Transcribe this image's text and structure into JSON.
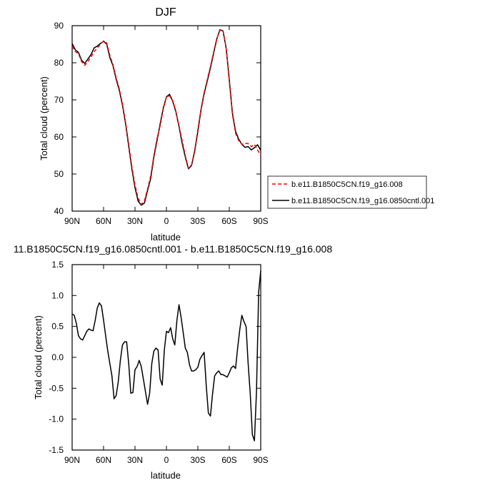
{
  "chart_data": [
    {
      "type": "line",
      "title": "DJF",
      "xlabel": "latitude",
      "ylabel": "Total cloud (percent)",
      "xlim": [
        90,
        -90
      ],
      "ylim": [
        40,
        90
      ],
      "x_ticks": [
        90,
        60,
        30,
        0,
        -30,
        -60,
        -90
      ],
      "x_tick_labels": [
        "90N",
        "60N",
        "30N",
        "0",
        "30S",
        "60S",
        "90S"
      ],
      "y_ticks": [
        40,
        50,
        60,
        70,
        80,
        90
      ],
      "y_tick_labels": [
        "40",
        "50",
        "60",
        "70",
        "80",
        "90"
      ],
      "grid": false,
      "legend_position": "right",
      "series": [
        {
          "name": "b.e11.B1850C5CN.f19_g16.008",
          "color": "#ff0000",
          "dash": "dashed",
          "x": [
            90,
            87,
            84,
            81,
            78,
            75,
            72,
            69,
            66,
            63,
            60,
            57,
            54,
            51,
            48,
            45,
            42,
            39,
            36,
            33,
            30,
            27,
            24,
            21,
            18,
            15,
            12,
            9,
            6,
            3,
            0,
            -3,
            -6,
            -9,
            -12,
            -15,
            -18,
            -21,
            -24,
            -27,
            -30,
            -33,
            -36,
            -39,
            -42,
            -45,
            -48,
            -51,
            -54,
            -57,
            -60,
            -63,
            -66,
            -69,
            -72,
            -75,
            -78,
            -81,
            -84,
            -87,
            -90
          ],
          "y": [
            84.5,
            83.0,
            82.5,
            80.3,
            79.3,
            80.3,
            81.5,
            83.0,
            84.0,
            85.0,
            85.9,
            85.3,
            82.0,
            79.5,
            76.0,
            73.0,
            69.0,
            64.0,
            58.0,
            52.0,
            47.0,
            43.5,
            41.8,
            42.8,
            46.0,
            49.5,
            55.0,
            59.5,
            63.0,
            67.5,
            70.8,
            71.1,
            69.8,
            67.0,
            63.0,
            59.0,
            55.0,
            51.6,
            52.5,
            56.5,
            62.0,
            67.5,
            72.0,
            75.5,
            79.0,
            82.8,
            86.5,
            88.7,
            88.8,
            84.0,
            75.0,
            66.0,
            61.0,
            59.0,
            58.0,
            58.3,
            58.2,
            57.4,
            58.0,
            56.5,
            55.0
          ]
        },
        {
          "name": "b.e11.B1850C5CN.f19_g16.0850cntl.001",
          "color": "#000000",
          "dash": "solid",
          "x": [
            90,
            87,
            84,
            81,
            78,
            75,
            72,
            69,
            66,
            63,
            60,
            57,
            54,
            51,
            48,
            45,
            42,
            39,
            36,
            33,
            30,
            27,
            24,
            21,
            18,
            15,
            12,
            9,
            6,
            3,
            0,
            -3,
            -6,
            -9,
            -12,
            -15,
            -18,
            -21,
            -24,
            -27,
            -30,
            -33,
            -36,
            -39,
            -42,
            -45,
            -48,
            -51,
            -54,
            -57,
            -60,
            -63,
            -66,
            -69,
            -72,
            -75,
            -78,
            -81,
            -84,
            -87,
            -90
          ],
          "y": [
            85.2,
            83.5,
            82.8,
            80.7,
            79.8,
            81.0,
            82.2,
            84.0,
            84.5,
            85.2,
            85.8,
            85.0,
            81.4,
            79.2,
            75.6,
            72.6,
            68.6,
            63.6,
            57.5,
            51.4,
            46.3,
            42.7,
            41.6,
            42.2,
            45.6,
            48.8,
            54.6,
            59.0,
            63.5,
            67.8,
            70.8,
            71.5,
            69.6,
            66.8,
            62.8,
            58.3,
            54.6,
            51.4,
            52.3,
            56.2,
            61.5,
            67.3,
            71.7,
            75.1,
            78.6,
            82.5,
            86.3,
            88.9,
            88.6,
            84.0,
            75.5,
            66.4,
            61.5,
            59.4,
            58.0,
            57.2,
            57.4,
            56.5,
            57.1,
            57.9,
            56.4
          ]
        }
      ]
    },
    {
      "type": "line",
      "title": "11.B1850C5CN.f19_g16.0850cntl.001 - b.e11.B1850C5CN.f19_g16.008",
      "xlabel": "latitude",
      "ylabel": "Total cloud (percent)",
      "xlim": [
        90,
        -90
      ],
      "ylim": [
        -1.5,
        1.5
      ],
      "x_ticks": [
        90,
        60,
        30,
        0,
        -30,
        -60,
        -90
      ],
      "x_tick_labels": [
        "90N",
        "60N",
        "30N",
        "0",
        "30S",
        "60S",
        "90S"
      ],
      "y_ticks": [
        -1.5,
        -1.0,
        -0.5,
        0.0,
        0.5,
        1.0,
        1.5
      ],
      "y_tick_labels": [
        "-1.5",
        "-1.0",
        "-0.5",
        "0.0",
        "0.5",
        "1.0",
        "1.5"
      ],
      "grid": false,
      "series": [
        {
          "color": "#000000",
          "dash": "solid",
          "x": [
            90,
            88,
            86,
            84,
            82,
            80,
            78,
            76,
            74,
            72,
            70,
            68,
            66,
            64,
            62,
            60,
            58,
            56,
            54,
            52,
            50,
            48,
            46,
            44,
            42,
            40,
            38,
            36,
            34,
            32,
            30,
            28,
            26,
            24,
            22,
            20,
            18,
            16,
            14,
            12,
            10,
            8,
            6,
            4,
            2,
            0,
            -2,
            -4,
            -6,
            -8,
            -10,
            -12,
            -14,
            -16,
            -18,
            -20,
            -22,
            -24,
            -26,
            -28,
            -30,
            -32,
            -34,
            -36,
            -38,
            -40,
            -42,
            -44,
            -46,
            -48,
            -50,
            -52,
            -54,
            -56,
            -58,
            -60,
            -62,
            -64,
            -66,
            -68,
            -70,
            -72,
            -74,
            -76,
            -78,
            -80,
            -82,
            -84,
            -86,
            -88,
            -90
          ],
          "y": [
            0.7,
            0.68,
            0.55,
            0.35,
            0.3,
            0.28,
            0.35,
            0.42,
            0.46,
            0.44,
            0.43,
            0.6,
            0.8,
            0.88,
            0.83,
            0.6,
            0.35,
            0.1,
            -0.1,
            -0.3,
            -0.67,
            -0.62,
            -0.4,
            -0.05,
            0.2,
            0.25,
            0.25,
            -0.1,
            -0.58,
            -0.57,
            -0.2,
            -0.15,
            -0.05,
            -0.15,
            -0.35,
            -0.56,
            -0.76,
            -0.58,
            -0.1,
            0.1,
            0.15,
            0.12,
            -0.35,
            -0.45,
            0.12,
            0.42,
            0.4,
            0.48,
            0.3,
            0.2,
            0.6,
            0.85,
            0.65,
            0.4,
            0.15,
            0.08,
            -0.12,
            -0.22,
            -0.22,
            -0.2,
            -0.16,
            -0.03,
            0.03,
            0.08,
            -0.45,
            -0.9,
            -0.95,
            -0.6,
            -0.3,
            -0.25,
            -0.22,
            -0.28,
            -0.28,
            -0.3,
            -0.32,
            -0.25,
            -0.17,
            -0.14,
            -0.18,
            0.15,
            0.45,
            0.68,
            0.58,
            0.5,
            -0.1,
            -0.58,
            -1.25,
            -1.35,
            -0.55,
            1.05,
            1.4
          ]
        }
      ]
    }
  ]
}
